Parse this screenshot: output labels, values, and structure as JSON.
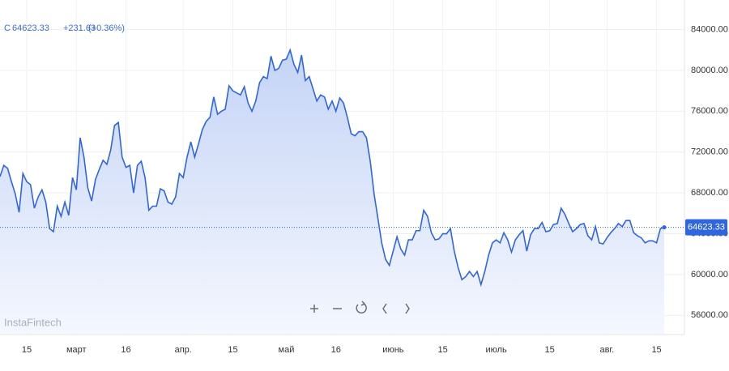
{
  "chart_data": {
    "type": "area",
    "symbol": "C",
    "change": "+231.63",
    "change_pct": "(+0.36%)",
    "watermark": "InstaFintech",
    "color": "#2f66e0",
    "grid": true,
    "price_line": true,
    "categories": [
      null,
      null,
      null,
      null,
      null,
      null,
      null,
      "15",
      null,
      null,
      null,
      null,
      null,
      null,
      null,
      null,
      null,
      null,
      null,
      null,
      "март",
      null,
      null,
      null,
      null,
      null,
      null,
      null,
      null,
      null,
      null,
      null,
      null,
      "16",
      null,
      null,
      null,
      null,
      null,
      null,
      null,
      null,
      null,
      null,
      null,
      null,
      null,
      null,
      "апр.",
      null,
      null,
      null,
      null,
      null,
      null,
      null,
      null,
      null,
      null,
      null,
      null,
      "15",
      null,
      null,
      null,
      null,
      null,
      null,
      null,
      null,
      null,
      null,
      null,
      null,
      null,
      "май",
      null,
      null,
      null,
      null,
      null,
      null,
      null,
      null,
      null,
      null,
      null,
      null,
      "16",
      null,
      null,
      null,
      null,
      null,
      null,
      null,
      null,
      null,
      null,
      null,
      null,
      null,
      null,
      "июнь",
      null,
      null,
      null,
      null,
      null,
      null,
      null,
      null,
      null,
      null,
      null,
      null,
      "15",
      null,
      null,
      null,
      null,
      null,
      null,
      null,
      null,
      null,
      null,
      null,
      null,
      null,
      "июль",
      null,
      null,
      null,
      null,
      null,
      null,
      null,
      null,
      null,
      null,
      null,
      null,
      null,
      "15",
      null,
      null,
      null,
      null,
      null,
      null,
      null,
      null,
      null,
      null,
      null,
      null,
      null,
      null,
      "авг.",
      null,
      null,
      null,
      null,
      null,
      null,
      null,
      null,
      null,
      null,
      null,
      null,
      "15",
      null,
      null
    ],
    "values": [
      69600,
      70700,
      70400,
      69100,
      67900,
      66100,
      69900,
      69100,
      68800,
      66500,
      67600,
      68300,
      67100,
      64500,
      64200,
      66700,
      65700,
      67100,
      65800,
      69500,
      68300,
      73400,
      71500,
      68500,
      67200,
      69300,
      70300,
      71200,
      70800,
      72200,
      74600,
      74900,
      71500,
      70500,
      70700,
      68000,
      70700,
      71100,
      69500,
      66300,
      66700,
      66700,
      68400,
      68200,
      67100,
      66900,
      67600,
      69900,
      69500,
      71500,
      73000,
      71500,
      72800,
      74200,
      75000,
      75400,
      77400,
      75700,
      76000,
      76200,
      78500,
      78000,
      77800,
      77600,
      78400,
      76800,
      76000,
      77000,
      78800,
      79400,
      79200,
      81400,
      80000,
      80200,
      81000,
      81100,
      82000,
      80600,
      79800,
      81500,
      79000,
      79400,
      78200,
      77000,
      77600,
      77400,
      76200,
      77000,
      76000,
      77300,
      76800,
      75400,
      73800,
      73600,
      74000,
      74000,
      73400,
      71100,
      67900,
      65500,
      63100,
      61500,
      60900,
      62300,
      63700,
      62500,
      61900,
      63400,
      63400,
      64300,
      64300,
      66300,
      65700,
      64100,
      63400,
      63500,
      64000,
      64000,
      64500,
      62300,
      60700,
      59500,
      59800,
      60300,
      59800,
      60300,
      59000,
      60300,
      61900,
      63100,
      63400,
      63100,
      64100,
      63400,
      62200,
      63400,
      63900,
      64300,
      62300,
      63900,
      64500,
      64500,
      65100,
      64200,
      64300,
      64900,
      65000,
      66500,
      65900,
      65000,
      64200,
      64500,
      64900,
      65000,
      63800,
      63400,
      64700,
      63100,
      63000,
      63600,
      64100,
      64500,
      65000,
      64700,
      65300,
      65300,
      64100,
      63800,
      63600,
      63100,
      63300,
      63300,
      63100,
      64500,
      64623.33
    ],
    "ylim": [
      54200,
      86900
    ],
    "yticks": [
      {
        "value": 56000,
        "label": "56000.00"
      },
      {
        "value": 60000,
        "label": "60000.00"
      },
      {
        "value": 64000,
        "label": "64000.00"
      },
      {
        "value": 68000,
        "label": "68000.00"
      },
      {
        "value": 72000,
        "label": "72000.00"
      },
      {
        "value": 76000,
        "label": "76000.00"
      },
      {
        "value": 80000,
        "label": "80000.00"
      },
      {
        "value": 84000,
        "label": "84000.00"
      }
    ]
  }
}
